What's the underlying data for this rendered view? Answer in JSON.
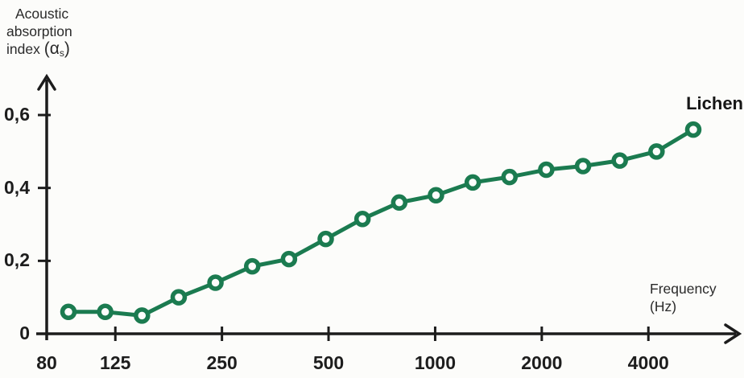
{
  "chart": {
    "y_axis_title": {
      "line1": "Acoustic",
      "line2": "absorption",
      "line3_pre": "index ",
      "line3_alpha": "(α",
      "line3_sub": "s",
      "line3_close": ")"
    },
    "x_axis_title": {
      "line1": "Frequency",
      "line2": "(Hz)"
    },
    "series_label": "Lichen"
  },
  "chart_data": {
    "type": "line",
    "title": "",
    "xlabel": "Frequency (Hz)",
    "ylabel": "Acoustic absorption index (αs)",
    "x_scale": "log",
    "grid": false,
    "marker": "open-circle",
    "legend_position": "annotation-top-right",
    "xlim": [
      80,
      5800
    ],
    "ylim": [
      0,
      0.66
    ],
    "series": [
      {
        "name": "Lichen",
        "x": [
          100,
          125,
          160,
          200,
          250,
          315,
          400,
          500,
          630,
          800,
          1000,
          1250,
          1600,
          2000,
          2500,
          3150,
          4000,
          5000
        ],
        "y": [
          0.06,
          0.06,
          0.05,
          0.1,
          0.14,
          0.185,
          0.205,
          0.26,
          0.315,
          0.36,
          0.38,
          0.415,
          0.43,
          0.45,
          0.46,
          0.475,
          0.5,
          0.56
        ]
      }
    ],
    "x_ticks": [
      {
        "value": 80,
        "label": "80"
      },
      {
        "value": 125,
        "label": "125"
      },
      {
        "value": 250,
        "label": "250"
      },
      {
        "value": 500,
        "label": "500"
      },
      {
        "value": 1000,
        "label": "1000"
      },
      {
        "value": 2000,
        "label": "2000"
      },
      {
        "value": 4000,
        "label": "4000"
      }
    ],
    "y_ticks": [
      {
        "value": 0,
        "label": "0"
      },
      {
        "value": 0.2,
        "label": "0,2"
      },
      {
        "value": 0.4,
        "label": "0,4"
      },
      {
        "value": 0.6,
        "label": "0,6"
      }
    ],
    "colors": {
      "line": "#1b7b50",
      "marker_fill": "#fdfdfc",
      "axis": "#1c1c1c",
      "text": "#2b2b2b",
      "background": "#fcfcfa"
    }
  }
}
